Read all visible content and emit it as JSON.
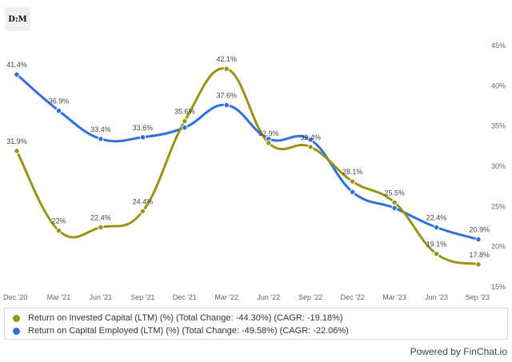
{
  "logo_text": "D:M",
  "chart_data": {
    "type": "line",
    "categories": [
      "Dec '20",
      "Mar '21",
      "Jun '21",
      "Sep '21",
      "Dec '21",
      "Mar '22",
      "Jun '22",
      "Sep '22",
      "Dec '22",
      "Mar '23",
      "Jun '23",
      "Sep '23"
    ],
    "y_axis": {
      "position": "right",
      "ylim": [
        15,
        45
      ],
      "ticks": [
        15,
        20,
        25,
        30,
        35,
        40,
        45
      ],
      "tick_format": "%"
    },
    "grid": false,
    "legend_placement": "bottom",
    "series": [
      {
        "name": "Return on Invested Capital (LTM) (%) (Total Change: -44.30%) (CAGR: -19.18%)",
        "color": "#9c9214",
        "values": [
          31.9,
          22,
          22.4,
          24.4,
          35.6,
          42.1,
          32.9,
          32.4,
          28.1,
          25.5,
          19.1,
          17.8
        ],
        "labels": [
          "31.9%",
          "22%",
          "22.4%",
          "24.4%",
          "35.6%",
          "42.1%",
          "32.9%",
          "32.4%",
          "28.1%",
          "25.5%",
          "19.1%",
          "17.8%"
        ]
      },
      {
        "name": "Return on Capital Employed (LTM) (%) (Total Change: -49.58%) (CAGR: -22.06%)",
        "color": "#2f6fe0",
        "values": [
          41.4,
          36.9,
          33.4,
          33.6,
          34.8,
          37.6,
          33.4,
          33.3,
          26.8,
          24.8,
          22.4,
          20.9
        ],
        "labels": [
          "41.4%",
          "36.9%",
          "33.4%",
          "33.6%",
          "",
          "37.6%",
          "",
          "",
          "",
          "",
          "22.4%",
          "20.9%"
        ]
      }
    ]
  },
  "footer": {
    "credit": "Powered by FinChat.io"
  }
}
